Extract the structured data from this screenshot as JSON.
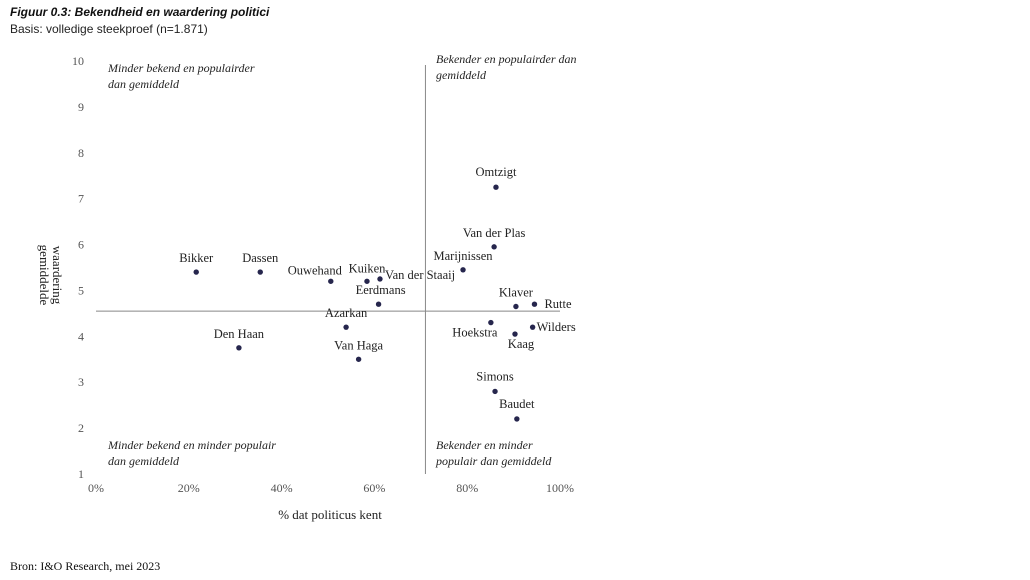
{
  "figure": {
    "title": "Figuur 0.3: Bekendheid en waardering politici",
    "subtitle": "Basis: volledige steekproef (n=1.871)",
    "source": "Bron: I&O Research, mei 2023"
  },
  "chart_data": {
    "type": "scatter",
    "title": "Figuur 0.3: Bekendheid en waardering politici",
    "subtitle": "Basis: volledige steekproef (n=1.871)",
    "xlabel": "% dat politicus kent",
    "ylabel": [
      "gemiddelde",
      "waardering"
    ],
    "xlim": [
      0,
      100
    ],
    "ylim": [
      1,
      10
    ],
    "x_ticks": [
      0,
      20,
      40,
      60,
      80,
      100
    ],
    "x_tick_labels": [
      "0%",
      "20%",
      "40%",
      "60%",
      "80%",
      "100%"
    ],
    "y_ticks": [
      1,
      2,
      3,
      4,
      5,
      6,
      7,
      8,
      9,
      10
    ],
    "reference_lines": {
      "x": 71,
      "y": 4.55
    },
    "point_color": "#26264d",
    "line_color": "#888888",
    "points": [
      {
        "name": "Bikker",
        "x": 21.6,
        "y": 5.4
      },
      {
        "name": "Dassen",
        "x": 35.4,
        "y": 5.4
      },
      {
        "name": "Ouwehand",
        "x": 50.6,
        "y": 5.2
      },
      {
        "name": "Kuiken",
        "x": 58.4,
        "y": 5.2
      },
      {
        "name": "Van der Staaij",
        "x": 61.2,
        "y": 5.25
      },
      {
        "name": "Eerdmans",
        "x": 60.9,
        "y": 4.7
      },
      {
        "name": "Azarkan",
        "x": 53.9,
        "y": 4.2
      },
      {
        "name": "Van Haga",
        "x": 56.6,
        "y": 3.5
      },
      {
        "name": "Den Haan",
        "x": 30.8,
        "y": 3.75
      },
      {
        "name": "Omtzigt",
        "x": 86.2,
        "y": 7.25
      },
      {
        "name": "Van der Plas",
        "x": 85.8,
        "y": 5.95
      },
      {
        "name": "Marijnissen",
        "x": 79.1,
        "y": 5.45
      },
      {
        "name": "Klaver",
        "x": 90.5,
        "y": 4.65
      },
      {
        "name": "Rutte",
        "x": 94.5,
        "y": 4.7
      },
      {
        "name": "Wilders",
        "x": 94.1,
        "y": 4.2
      },
      {
        "name": "Hoekstra",
        "x": 85.1,
        "y": 4.3
      },
      {
        "name": "Kaag",
        "x": 90.3,
        "y": 4.05
      },
      {
        "name": "Simons",
        "x": 86.0,
        "y": 2.8
      },
      {
        "name": "Baudet",
        "x": 90.7,
        "y": 2.2
      }
    ],
    "quadrant_labels": {
      "top_left": [
        "Minder bekend en populairder",
        "dan gemiddeld"
      ],
      "top_right": [
        "Bekender en populairder dan",
        "gemiddeld"
      ],
      "bottom_left": [
        "Minder bekend en minder populair",
        "dan gemiddeld"
      ],
      "bottom_right": [
        "Bekender en minder",
        "populair dan gemiddeld"
      ]
    }
  }
}
